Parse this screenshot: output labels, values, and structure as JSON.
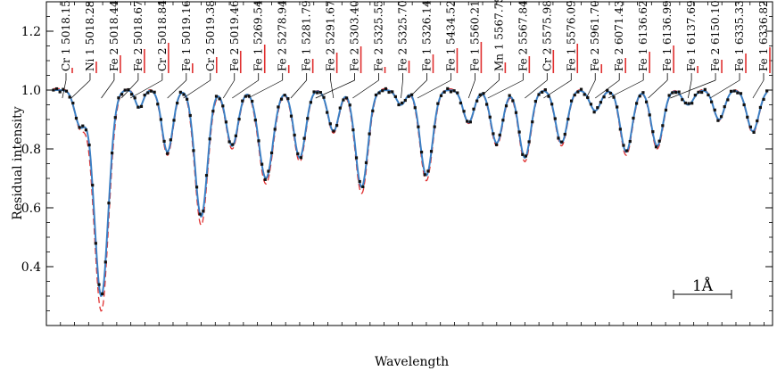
{
  "chart_data": {
    "type": "line",
    "xlabel": "Wavelength",
    "ylabel": "Residual intensity",
    "ylim": [
      0.2,
      1.3
    ],
    "yticks": [
      "0.4",
      "0.6",
      "0.8",
      "1.0",
      "1.2"
    ],
    "x_units": "segment-index",
    "scale_bar_label": "1Å",
    "colors": {
      "observed": "#111111",
      "fit": "#3b7fc4",
      "model": "#e03030",
      "lines": "#000000",
      "axis": "#000000"
    },
    "line_ids": [
      "Cr 1 5018.15",
      "Ni 1 5018.28",
      "Fe 2 5018.44",
      "Fe 2 5018.67",
      "Cr 2 5018.84",
      "Fe 1 5019.16",
      "Cr 2 5019.38",
      "Fe 2 5019.46",
      "Fe 1 5269.54",
      "Fe 2 5278.94",
      "Fe 1 5281.79",
      "Fe 2 5291.67",
      "Fe 2 5303.40",
      "Fe 2 5325.55",
      "Fe 2 5325.70",
      "Fe 1 5326.14",
      "Fe 1 5434.52",
      "Fe 1 5560.21",
      "Mn 1 5567.75",
      "Fe 2 5567.84",
      "Cr 2 5575.98",
      "Fe 1 5576.09",
      "Fe 2 5961.70",
      "Fe 2 6071.43",
      "Fe 1 6136.62",
      "Fe 1 6136.99",
      "Fe 1 6137.69",
      "Fe 2 6150.10",
      "Fe 1 6335.33",
      "Fe 1 6336.82"
    ],
    "absorption_features": [
      {
        "x": 1.2,
        "depth": 0.12,
        "width": 0.35
      },
      {
        "x": 1.95,
        "depth": 0.7,
        "width": 0.45
      },
      {
        "x": 3.3,
        "depth": 0.06,
        "width": 0.25
      },
      {
        "x": 4.3,
        "depth": 0.21,
        "width": 0.35
      },
      {
        "x": 5.5,
        "depth": 0.43,
        "width": 0.4
      },
      {
        "x": 6.6,
        "depth": 0.19,
        "width": 0.38
      },
      {
        "x": 7.8,
        "depth": 0.3,
        "width": 0.45
      },
      {
        "x": 9.0,
        "depth": 0.23,
        "width": 0.38
      },
      {
        "x": 10.2,
        "depth": 0.14,
        "width": 0.35
      },
      {
        "x": 11.2,
        "depth": 0.33,
        "width": 0.4
      },
      {
        "x": 12.6,
        "depth": 0.05,
        "width": 0.3
      },
      {
        "x": 13.5,
        "depth": 0.29,
        "width": 0.4
      },
      {
        "x": 15.0,
        "depth": 0.11,
        "width": 0.35
      },
      {
        "x": 16.0,
        "depth": 0.18,
        "width": 0.38
      },
      {
        "x": 17.0,
        "depth": 0.23,
        "width": 0.38
      },
      {
        "x": 18.3,
        "depth": 0.18,
        "width": 0.38
      },
      {
        "x": 19.5,
        "depth": 0.07,
        "width": 0.35
      },
      {
        "x": 20.6,
        "depth": 0.21,
        "width": 0.38
      },
      {
        "x": 21.7,
        "depth": 0.19,
        "width": 0.38
      },
      {
        "x": 22.8,
        "depth": 0.05,
        "width": 0.35
      },
      {
        "x": 23.9,
        "depth": 0.1,
        "width": 0.35
      },
      {
        "x": 25.1,
        "depth": 0.14,
        "width": 0.38
      }
    ],
    "observed_points_count": 220
  }
}
